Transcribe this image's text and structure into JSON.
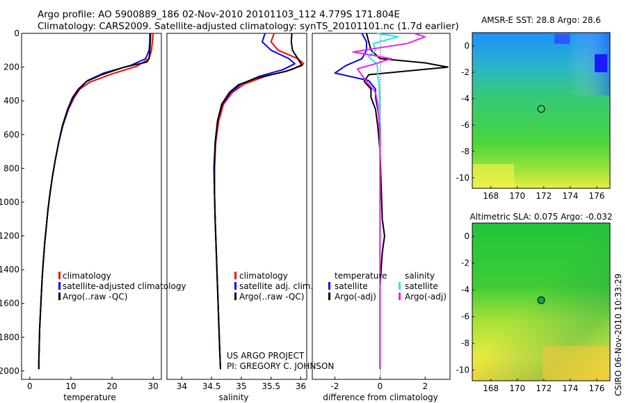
{
  "header": {
    "line1": "Argo profile: AO 5900889_186 02-Nov-2010 20101103_112 4.779S 171.804E",
    "line2": "Climatology: CARS2009. Satellite-adjusted climatology: synTS_20101101.nc (1.7d earlier)"
  },
  "credit": {
    "line1": "US ARGO PROJECT",
    "line2": "PI: GREGORY C. JOHNSON"
  },
  "timestamp": "CSIRO 06-Nov-2010 10:33:29",
  "colors": {
    "climatology": "#ff0000",
    "satellite": "#0000ff",
    "argo": "#000000",
    "sat_salinity": "#22e5ee",
    "argo_salinity": "#ee22ee"
  },
  "chart_data": [
    {
      "type": "line",
      "id": "temperature",
      "xlabel": "temperature",
      "xlim": [
        -2,
        32
      ],
      "ylim": [
        0,
        2050
      ],
      "y_inverted": true,
      "xticks": [
        0,
        10,
        20,
        30
      ],
      "yticks": [
        0,
        200,
        400,
        600,
        800,
        1000,
        1200,
        1400,
        1600,
        1800,
        2000
      ],
      "legend": [
        "climatology",
        "satellite-adjusted climatology",
        "Argo(..raw -QC)"
      ],
      "series": [
        {
          "name": "climatology",
          "color": "#ff0000",
          "points": [
            [
              30.0,
              0
            ],
            [
              29.8,
              50
            ],
            [
              29.6,
              100
            ],
            [
              29.0,
              150
            ],
            [
              26.0,
              195
            ],
            [
              20.0,
              240
            ],
            [
              14.5,
              290
            ],
            [
              12.2,
              330
            ],
            [
              10.8,
              380
            ],
            [
              9.4,
              450
            ],
            [
              8.0,
              550
            ],
            [
              7.0,
              650
            ],
            [
              6.2,
              750
            ],
            [
              5.5,
              850
            ],
            [
              4.9,
              950
            ],
            [
              4.4,
              1050
            ],
            [
              4.0,
              1150
            ],
            [
              3.6,
              1250
            ],
            [
              3.3,
              1350
            ],
            [
              3.0,
              1450
            ],
            [
              2.8,
              1550
            ],
            [
              2.6,
              1650
            ],
            [
              2.4,
              1750
            ],
            [
              2.3,
              1850
            ],
            [
              2.2,
              1950
            ],
            [
              2.2,
              1990
            ]
          ]
        },
        {
          "name": "satellite",
          "color": "#0000ff",
          "points": [
            [
              29.2,
              0
            ],
            [
              29.2,
              50
            ],
            [
              29.0,
              100
            ],
            [
              28.2,
              150
            ],
            [
              24.5,
              190
            ],
            [
              18.0,
              235
            ],
            [
              14.0,
              280
            ],
            [
              12.0,
              330
            ],
            [
              10.6,
              380
            ],
            [
              9.3,
              450
            ],
            [
              8.0,
              550
            ],
            [
              7.0,
              650
            ],
            [
              6.2,
              750
            ],
            [
              5.5,
              850
            ],
            [
              4.9,
              950
            ],
            [
              4.4,
              1050
            ],
            [
              4.0,
              1150
            ],
            [
              3.6,
              1250
            ],
            [
              3.3,
              1350
            ],
            [
              3.0,
              1450
            ],
            [
              2.8,
              1550
            ],
            [
              2.6,
              1650
            ],
            [
              2.4,
              1750
            ],
            [
              2.3,
              1850
            ],
            [
              2.2,
              1950
            ],
            [
              2.2,
              1990
            ]
          ]
        },
        {
          "name": "Argo",
          "color": "#000000",
          "points": [
            [
              29.4,
              0
            ],
            [
              29.3,
              50
            ],
            [
              29.2,
              100
            ],
            [
              29.0,
              150
            ],
            [
              28.5,
              170
            ],
            [
              23.0,
              200
            ],
            [
              17.5,
              245
            ],
            [
              13.8,
              285
            ],
            [
              11.8,
              330
            ],
            [
              10.4,
              380
            ],
            [
              9.2,
              450
            ],
            [
              7.9,
              550
            ],
            [
              7.0,
              650
            ],
            [
              6.2,
              750
            ],
            [
              5.5,
              850
            ],
            [
              4.9,
              950
            ],
            [
              4.4,
              1050
            ],
            [
              4.0,
              1150
            ],
            [
              3.6,
              1250
            ],
            [
              3.3,
              1350
            ],
            [
              3.0,
              1450
            ],
            [
              2.8,
              1550
            ],
            [
              2.6,
              1650
            ],
            [
              2.4,
              1750
            ],
            [
              2.3,
              1850
            ],
            [
              2.2,
              1950
            ],
            [
              2.2,
              1990
            ]
          ]
        }
      ]
    },
    {
      "type": "line",
      "id": "salinity",
      "xlabel": "salinity",
      "xlim": [
        33.75,
        36.1
      ],
      "ylim": [
        0,
        2050
      ],
      "y_inverted": true,
      "xticks": [
        34,
        34.5,
        35,
        35.5,
        36
      ],
      "legend": [
        "climatology",
        "satellite adj. clim.",
        "Argo(..raw -QC)"
      ],
      "series": [
        {
          "name": "climatology",
          "color": "#ff0000",
          "points": [
            [
              35.55,
              0
            ],
            [
              35.5,
              50
            ],
            [
              35.62,
              100
            ],
            [
              35.95,
              150
            ],
            [
              36.05,
              180
            ],
            [
              35.85,
              215
            ],
            [
              35.4,
              255
            ],
            [
              35.05,
              300
            ],
            [
              34.85,
              350
            ],
            [
              34.7,
              420
            ],
            [
              34.62,
              520
            ],
            [
              34.57,
              650
            ],
            [
              34.55,
              800
            ],
            [
              34.55,
              950
            ],
            [
              34.56,
              1100
            ],
            [
              34.58,
              1300
            ],
            [
              34.6,
              1500
            ],
            [
              34.62,
              1700
            ],
            [
              34.64,
              1900
            ],
            [
              34.65,
              1990
            ]
          ]
        },
        {
          "name": "satellite",
          "color": "#0000ff",
          "points": [
            [
              35.4,
              0
            ],
            [
              35.35,
              50
            ],
            [
              35.5,
              100
            ],
            [
              35.8,
              150
            ],
            [
              35.9,
              180
            ],
            [
              35.7,
              215
            ],
            [
              35.3,
              255
            ],
            [
              35.0,
              300
            ],
            [
              34.82,
              350
            ],
            [
              34.68,
              420
            ],
            [
              34.6,
              520
            ],
            [
              34.56,
              650
            ],
            [
              34.55,
              800
            ],
            [
              34.55,
              950
            ],
            [
              34.56,
              1100
            ],
            [
              34.58,
              1300
            ],
            [
              34.6,
              1500
            ],
            [
              34.62,
              1700
            ],
            [
              34.64,
              1900
            ],
            [
              34.65,
              1990
            ]
          ]
        },
        {
          "name": "Argo",
          "color": "#000000",
          "points": [
            [
              35.85,
              0
            ],
            [
              35.84,
              50
            ],
            [
              35.86,
              100
            ],
            [
              35.95,
              150
            ],
            [
              36.02,
              190
            ],
            [
              35.75,
              225
            ],
            [
              35.25,
              265
            ],
            [
              34.95,
              305
            ],
            [
              34.8,
              350
            ],
            [
              34.67,
              420
            ],
            [
              34.6,
              520
            ],
            [
              34.56,
              650
            ],
            [
              34.54,
              800
            ],
            [
              34.55,
              950
            ],
            [
              34.56,
              1100
            ],
            [
              34.58,
              1300
            ],
            [
              34.6,
              1500
            ],
            [
              34.62,
              1700
            ],
            [
              34.64,
              1900
            ],
            [
              34.65,
              1990
            ]
          ]
        }
      ]
    },
    {
      "type": "line",
      "id": "difference",
      "xlabel": "difference from climatology",
      "xlim": [
        -3,
        3.1
      ],
      "ylim": [
        0,
        2050
      ],
      "y_inverted": true,
      "xticks": [
        -2,
        0,
        2
      ],
      "legend_groups": [
        {
          "title": "temperature",
          "entries": [
            "satellite",
            "Argo(-adj)"
          ]
        },
        {
          "title": "salinity",
          "entries": [
            "satellite",
            "Argo(-adj)"
          ]
        }
      ],
      "series": [
        {
          "name": "temperature satellite",
          "color": "#0000ff",
          "points": [
            [
              -0.8,
              0
            ],
            [
              -0.6,
              50
            ],
            [
              -0.6,
              100
            ],
            [
              -0.8,
              150
            ],
            [
              -1.5,
              190
            ],
            [
              -2.0,
              235
            ],
            [
              -0.5,
              280
            ],
            [
              -0.2,
              330
            ],
            [
              -0.2,
              380
            ],
            [
              -0.1,
              450
            ],
            [
              0.0,
              550
            ],
            [
              0.0,
              700
            ],
            [
              0.0,
              900
            ],
            [
              0.0,
              1200
            ],
            [
              0.0,
              1500
            ],
            [
              0.0,
              1800
            ],
            [
              0.0,
              1990
            ]
          ]
        },
        {
          "name": "temperature Argo",
          "color": "#000000",
          "points": [
            [
              -0.6,
              0
            ],
            [
              -0.5,
              50
            ],
            [
              -0.4,
              100
            ],
            [
              0.0,
              150
            ],
            [
              2.0,
              175
            ],
            [
              3.0,
              200
            ],
            [
              -0.5,
              245
            ],
            [
              -0.7,
              285
            ],
            [
              -0.4,
              330
            ],
            [
              -0.4,
              380
            ],
            [
              -0.2,
              450
            ],
            [
              -0.1,
              550
            ],
            [
              0.0,
              700
            ],
            [
              0.05,
              900
            ],
            [
              0.1,
              1100
            ],
            [
              0.2,
              1200
            ],
            [
              0.1,
              1300
            ],
            [
              0.0,
              1500
            ],
            [
              0.0,
              1800
            ],
            [
              0.0,
              1990
            ]
          ]
        },
        {
          "name": "salinity satellite",
          "color": "#22e5ee",
          "points": [
            [
              -0.15,
              0
            ],
            [
              0.8,
              20
            ],
            [
              -0.3,
              60
            ],
            [
              -0.2,
              100
            ],
            [
              -0.5,
              140
            ],
            [
              -0.15,
              180
            ],
            [
              -0.1,
              215
            ],
            [
              -0.1,
              255
            ],
            [
              -0.05,
              300
            ],
            [
              -0.03,
              350
            ],
            [
              -0.02,
              420
            ],
            [
              -0.02,
              520
            ],
            [
              -0.01,
              650
            ],
            [
              0.0,
              800
            ],
            [
              0.0,
              950
            ],
            [
              0.0,
              1200
            ],
            [
              0.0,
              1500
            ],
            [
              0.0,
              1800
            ],
            [
              0.0,
              1990
            ]
          ]
        },
        {
          "name": "salinity Argo",
          "color": "#ee22ee",
          "points": [
            [
              1.5,
              0
            ],
            [
              2.0,
              20
            ],
            [
              1.2,
              60
            ],
            [
              -1.2,
              110
            ],
            [
              0.5,
              150
            ],
            [
              -0.2,
              180
            ],
            [
              -1.0,
              210
            ],
            [
              -0.8,
              250
            ],
            [
              -0.5,
              300
            ],
            [
              -0.2,
              350
            ],
            [
              -0.1,
              420
            ],
            [
              -0.05,
              520
            ],
            [
              0.0,
              650
            ],
            [
              0.0,
              800
            ],
            [
              0.0,
              1200
            ],
            [
              0.0,
              1500
            ],
            [
              0.0,
              1800
            ],
            [
              0.0,
              1990
            ]
          ]
        }
      ]
    },
    {
      "type": "heatmap",
      "id": "sst-map",
      "title": "AMSR-E SST: 28.8 Argo: 28.6",
      "xlim": [
        166.6,
        177
      ],
      "ylim": [
        -10.8,
        1
      ],
      "xticks": [
        168,
        170,
        172,
        174,
        176
      ],
      "yticks": [
        0,
        -2,
        -4,
        -6,
        -8,
        -10
      ],
      "marker": {
        "lon": 171.804,
        "lat": -4.779
      }
    },
    {
      "type": "heatmap",
      "id": "sla-map",
      "title": "Altimetric SLA: 0.075 Argo: -0.032",
      "xlim": [
        166.6,
        177
      ],
      "ylim": [
        -10.8,
        1
      ],
      "xticks": [
        168,
        170,
        172,
        174,
        176
      ],
      "yticks": [
        0,
        -2,
        -4,
        -6,
        -8,
        -10
      ],
      "marker": {
        "lon": 171.804,
        "lat": -4.779
      }
    }
  ]
}
